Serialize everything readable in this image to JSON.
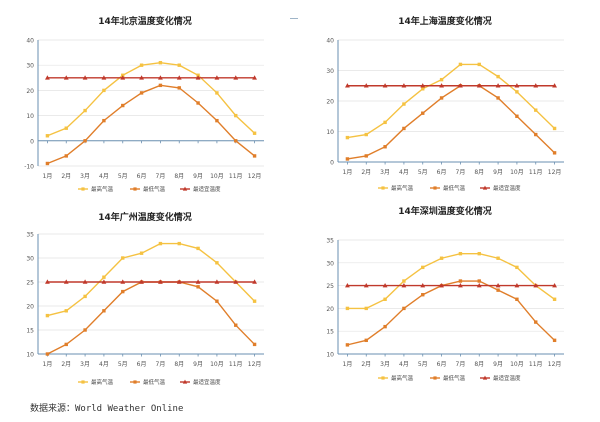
{
  "colors": {
    "max": "#f5c242",
    "min": "#e07e2a",
    "comfort": "#c0392b",
    "axis": "#6a8fb0",
    "grid": "#e3e3e3"
  },
  "legend": {
    "max": "最高气温",
    "min": "最低气温",
    "comfort": "最适宜温度"
  },
  "source_text": "数据来源：World Weather Online",
  "chart_data": [
    {
      "type": "line",
      "title": "14年北京温度变化情况",
      "categories": [
        "1月",
        "2月",
        "3月",
        "4月",
        "5月",
        "6月",
        "7月",
        "8月",
        "9月",
        "10月",
        "11月",
        "12月"
      ],
      "ylim": [
        -10,
        40
      ],
      "yticks": [
        -10,
        0,
        10,
        20,
        30,
        40
      ],
      "ytick_labels": [
        "-10",
        "0",
        "10",
        "20",
        "30",
        "40"
      ],
      "series": [
        {
          "name": "最高气温",
          "key": "max",
          "values": [
            2,
            5,
            12,
            20,
            26,
            30,
            31,
            30,
            26,
            19,
            10,
            3
          ]
        },
        {
          "name": "最低气温",
          "key": "min",
          "values": [
            -9,
            -6,
            0,
            8,
            14,
            19,
            22,
            21,
            15,
            8,
            0,
            -6
          ]
        },
        {
          "name": "最适宜温度",
          "key": "comfort",
          "values": [
            25,
            25,
            25,
            25,
            25,
            25,
            25,
            25,
            25,
            25,
            25,
            25
          ]
        }
      ]
    },
    {
      "type": "line",
      "title": "14年上海温度变化情况",
      "categories": [
        "1月",
        "2月",
        "3月",
        "4月",
        "5月",
        "6月",
        "7月",
        "8月",
        "9月",
        "10月",
        "11月",
        "12月"
      ],
      "ylim": [
        0,
        40
      ],
      "yticks": [
        0,
        10,
        20,
        30,
        40
      ],
      "ytick_labels": [
        "0",
        "10",
        "20",
        "30",
        "40"
      ],
      "series": [
        {
          "name": "最高气温",
          "key": "max",
          "values": [
            8,
            9,
            13,
            19,
            24,
            27,
            32,
            32,
            28,
            23,
            17,
            11
          ]
        },
        {
          "name": "最低气温",
          "key": "min",
          "values": [
            1,
            2,
            5,
            11,
            16,
            21,
            25,
            25,
            21,
            15,
            9,
            3
          ]
        },
        {
          "name": "最适宜温度",
          "key": "comfort",
          "values": [
            25,
            25,
            25,
            25,
            25,
            25,
            25,
            25,
            25,
            25,
            25,
            25
          ]
        }
      ]
    },
    {
      "type": "line",
      "title": "14年广州温度变化情况",
      "categories": [
        "1月",
        "2月",
        "3月",
        "4月",
        "5月",
        "6月",
        "7月",
        "8月",
        "9月",
        "10月",
        "11月",
        "12月"
      ],
      "ylim": [
        10,
        35
      ],
      "yticks": [
        10,
        15,
        20,
        25,
        30,
        35
      ],
      "ytick_labels": [
        "10",
        "15",
        "20",
        "25",
        "30",
        "35"
      ],
      "series": [
        {
          "name": "最高气温",
          "key": "max",
          "values": [
            18,
            19,
            22,
            26,
            30,
            31,
            33,
            33,
            32,
            29,
            25,
            21
          ]
        },
        {
          "name": "最低气温",
          "key": "min",
          "values": [
            10,
            12,
            15,
            19,
            23,
            25,
            25,
            25,
            24,
            21,
            16,
            12
          ]
        },
        {
          "name": "最适宜温度",
          "key": "comfort",
          "values": [
            25,
            25,
            25,
            25,
            25,
            25,
            25,
            25,
            25,
            25,
            25,
            25
          ]
        }
      ]
    },
    {
      "type": "line",
      "title": "14年深圳温度变化情况",
      "categories": [
        "1月",
        "2月",
        "3月",
        "4月",
        "5月",
        "6月",
        "7月",
        "8月",
        "9月",
        "10月",
        "11月",
        "12月"
      ],
      "ylim": [
        10,
        35
      ],
      "yticks": [
        10,
        15,
        20,
        25,
        30,
        35
      ],
      "ytick_labels": [
        "10",
        "15",
        "20",
        "25",
        "30",
        "35"
      ],
      "series": [
        {
          "name": "最高气温",
          "key": "max",
          "values": [
            20,
            20,
            22,
            26,
            29,
            31,
            32,
            32,
            31,
            29,
            25,
            22
          ]
        },
        {
          "name": "最低气温",
          "key": "min",
          "values": [
            12,
            13,
            16,
            20,
            23,
            25,
            26,
            26,
            24,
            22,
            17,
            13
          ]
        },
        {
          "name": "最适宜温度",
          "key": "comfort",
          "values": [
            25,
            25,
            25,
            25,
            25,
            25,
            25,
            25,
            25,
            25,
            25,
            25
          ]
        }
      ]
    }
  ]
}
